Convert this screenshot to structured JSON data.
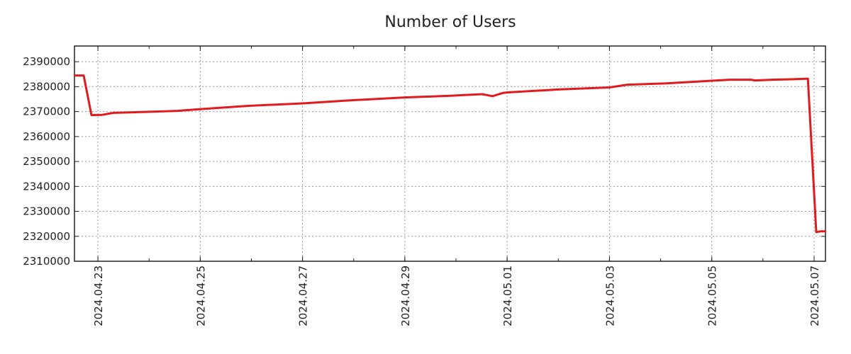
{
  "chart_data": {
    "type": "line",
    "title": "Number of Users",
    "xlabel": "",
    "ylabel": "",
    "xlim": [
      "2024-04-22T13:00",
      "2024-05-07T05:20"
    ],
    "ylim": [
      2310000,
      2396300
    ],
    "grid": true,
    "legend": "none",
    "x_tick_labels": [
      "2024.04.23",
      "2024.04.25",
      "2024.04.27",
      "2024.04.29",
      "2024.05.01",
      "2024.05.03",
      "2024.05.05",
      "2024.05.07"
    ],
    "x_tick_dates": [
      "2024-04-23T00:00",
      "2024-04-25T00:00",
      "2024-04-27T00:00",
      "2024-04-29T00:00",
      "2024-05-01T00:00",
      "2024-05-03T00:00",
      "2024-05-05T00:00",
      "2024-05-07T00:00"
    ],
    "y_ticks": [
      2310000,
      2320000,
      2330000,
      2340000,
      2350000,
      2360000,
      2370000,
      2380000,
      2390000
    ],
    "y_tick_labels": [
      "2310000",
      "2320000",
      "2330000",
      "2340000",
      "2350000",
      "2360000",
      "2370000",
      "2380000",
      "2390000"
    ],
    "series": [
      {
        "name": "Number of Users",
        "color": "#e31a1c",
        "x": [
          "2024-04-22T13:00",
          "2024-04-22T17:20",
          "2024-04-22T21:00",
          "2024-04-23T02:00",
          "2024-04-23T07:20",
          "2024-04-23T15:00",
          "2024-04-24T13:15",
          "2024-04-25T00:10",
          "2024-04-25T22:30",
          "2024-04-27T00:05",
          "2024-04-28T00:15",
          "2024-04-29T00:00",
          "2024-04-29T19:30",
          "2024-04-30T12:10",
          "2024-04-30T17:10",
          "2024-04-30T22:05",
          "2024-05-01T00:10",
          "2024-05-02T00:45",
          "2024-05-03T00:00",
          "2024-05-03T08:20",
          "2024-05-04T02:40",
          "2024-05-05T00:10",
          "2024-05-05T08:25",
          "2024-05-05T18:30",
          "2024-05-05T20:10",
          "2024-05-06T04:30",
          "2024-05-06T14:25",
          "2024-05-06T21:05",
          "2024-05-07T01:00",
          "2024-05-07T03:05",
          "2024-05-07T05:20"
        ],
        "values": [
          2384500,
          2384500,
          2368600,
          2368700,
          2369500,
          2369700,
          2370300,
          2371000,
          2372300,
          2373300,
          2374600,
          2375700,
          2376300,
          2377000,
          2376200,
          2377500,
          2377700,
          2378900,
          2379700,
          2380800,
          2381300,
          2382400,
          2382800,
          2382800,
          2382500,
          2382800,
          2383000,
          2383200,
          2321700,
          2322000,
          2322000
        ]
      }
    ]
  }
}
